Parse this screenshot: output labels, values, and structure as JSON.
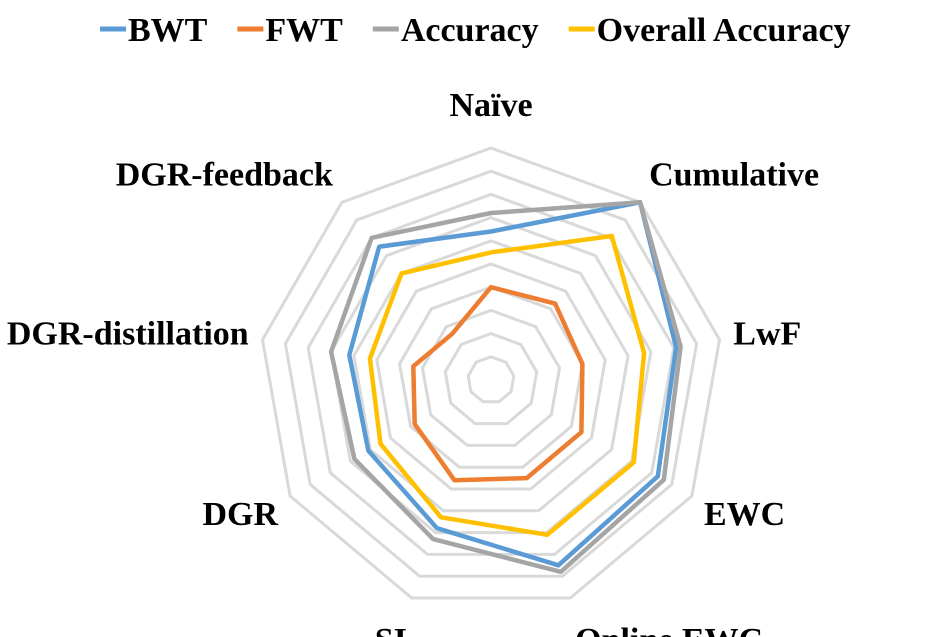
{
  "chart_data": {
    "type": "radar",
    "title": "",
    "axes": [
      "Naïve",
      "Cumulative",
      "LwF",
      "EWC",
      "Online EWC",
      "SI",
      "DGR",
      "DGR-distillation",
      "DGR-feedback"
    ],
    "rmax": 1.0,
    "ring_levels": [
      0.1,
      0.2,
      0.3,
      0.4,
      0.5,
      0.6,
      0.7,
      0.8,
      0.9,
      1.0
    ],
    "grid": true,
    "legend_position": "top",
    "series": [
      {
        "name": "BWT",
        "color": "#5B9BD5",
        "values": [
          0.64,
          1.0,
          0.81,
          0.83,
          0.85,
          0.68,
          0.61,
          0.62,
          0.75
        ]
      },
      {
        "name": "FWT",
        "color": "#ED7D31",
        "values": [
          0.4,
          0.43,
          0.4,
          0.45,
          0.45,
          0.46,
          0.38,
          0.34,
          0.26
        ]
      },
      {
        "name": "Accuracy",
        "color": "#A5A5A5",
        "values": [
          0.72,
          1.0,
          0.83,
          0.86,
          0.88,
          0.73,
          0.68,
          0.7,
          0.8
        ]
      },
      {
        "name": "Overall Accuracy",
        "color": "#FFC000",
        "values": [
          0.55,
          0.81,
          0.67,
          0.71,
          0.71,
          0.63,
          0.55,
          0.53,
          0.6
        ]
      }
    ]
  }
}
